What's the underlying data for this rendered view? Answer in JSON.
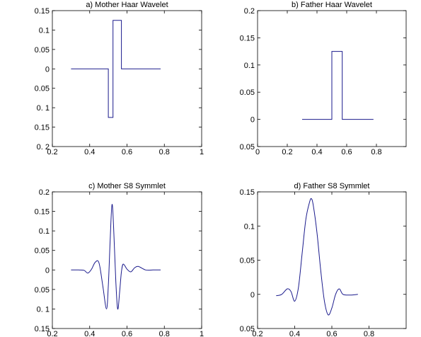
{
  "chart_data": [
    {
      "type": "line",
      "title": "a) Mother Haar Wavelet",
      "xlim": [
        0.2,
        1
      ],
      "ylim": [
        -0.2,
        0.15
      ],
      "xticks": [
        0.2,
        0.4,
        0.6,
        0.8,
        1
      ],
      "xtick_labels": [
        "0.2",
        "0.4",
        "0.6",
        "0.8",
        "1"
      ],
      "yticks": [
        0.15,
        0.1,
        0.05,
        0,
        -0.05,
        -0.1,
        -0.15,
        -0.2
      ],
      "ytick_labels": [
        "0.15",
        "0.1",
        "0.05",
        "0",
        "0.05",
        "0. 1",
        "0.15",
        "0. 2"
      ],
      "series": [
        {
          "color": "#1a1a8c",
          "x": [
            0.3,
            0.5,
            0.5,
            0.525,
            0.525,
            0.55,
            0.55,
            0.57,
            0.57,
            0.78
          ],
          "y": [
            0,
            0,
            -0.125,
            -0.125,
            0.125,
            0.125,
            0.125,
            0.125,
            0,
            0
          ]
        }
      ]
    },
    {
      "type": "line",
      "title": "b) Father Haar Wavelet",
      "xlim": [
        0,
        1
      ],
      "ylim": [
        -0.05,
        0.2
      ],
      "xticks": [
        0,
        0.2,
        0.4,
        0.6,
        0.8
      ],
      "xtick_labels": [
        "0",
        "0.2",
        "0.4",
        "0.6",
        "0.8"
      ],
      "yticks": [
        0.2,
        0.15,
        0.1,
        0.05,
        0,
        -0.05
      ],
      "ytick_labels": [
        "0.2",
        "0.15",
        "0.1",
        "0.05",
        "0",
        "0.05"
      ],
      "series": [
        {
          "color": "#1a1a8c",
          "x": [
            0.3,
            0.5,
            0.5,
            0.57,
            0.57,
            0.78
          ],
          "y": [
            0,
            0,
            0.125,
            0.125,
            0,
            0
          ]
        }
      ]
    },
    {
      "type": "line",
      "title": "c) Mother S8 Symmlet",
      "xlim": [
        0.2,
        1
      ],
      "ylim": [
        -0.15,
        0.2
      ],
      "xticks": [
        0.2,
        0.4,
        0.6,
        0.8,
        1
      ],
      "xtick_labels": [
        "0.2",
        "0.4",
        "0.6",
        "0.8",
        "1"
      ],
      "yticks": [
        0.2,
        0.15,
        0.1,
        0.05,
        0,
        -0.05,
        -0.1,
        -0.15
      ],
      "ytick_labels": [
        "0.2",
        "0.15",
        "0.1",
        "0.05",
        "0",
        "0.05",
        "0. 1",
        "0.15"
      ],
      "series": [
        {
          "color": "#1a1a8c",
          "x": [
            0.3,
            0.34,
            0.37,
            0.39,
            0.41,
            0.43,
            0.45,
            0.47,
            0.49,
            0.5,
            0.51,
            0.52,
            0.53,
            0.54,
            0.55,
            0.56,
            0.57,
            0.58,
            0.6,
            0.62,
            0.64,
            0.66,
            0.7,
            0.74,
            0.78
          ],
          "y": [
            0,
            0,
            -0.001,
            -0.008,
            0.002,
            0.02,
            0.018,
            -0.04,
            -0.1,
            -0.04,
            0.08,
            0.168,
            0.09,
            -0.03,
            -0.1,
            -0.06,
            -0.005,
            0.015,
            0.002,
            -0.005,
            0.005,
            0.009,
            0,
            0,
            0
          ]
        }
      ]
    },
    {
      "type": "line",
      "title": "d) Father S8 Symmlet",
      "xlim": [
        0.2,
        1
      ],
      "ylim": [
        -0.05,
        0.15
      ],
      "xticks": [
        0.2,
        0.4,
        0.6,
        0.8
      ],
      "xtick_labels": [
        "0.2",
        "0.4",
        "0.6",
        "0.8"
      ],
      "yticks": [
        0.15,
        0.1,
        0.05,
        0,
        -0.05
      ],
      "ytick_labels": [
        "0.15",
        "0.1",
        "0.05",
        "0",
        "0.05"
      ],
      "series": [
        {
          "color": "#1a1a8c",
          "x": [
            0.3,
            0.33,
            0.36,
            0.38,
            0.4,
            0.42,
            0.44,
            0.46,
            0.48,
            0.49,
            0.5,
            0.52,
            0.54,
            0.56,
            0.58,
            0.6,
            0.62,
            0.64,
            0.66,
            0.7,
            0.74
          ],
          "y": [
            -0.002,
            0,
            0.008,
            0.004,
            -0.01,
            0.01,
            0.06,
            0.11,
            0.135,
            0.14,
            0.13,
            0.09,
            0.035,
            -0.01,
            -0.03,
            -0.02,
            0,
            0.008,
            0,
            -0.001,
            0
          ]
        }
      ]
    }
  ]
}
